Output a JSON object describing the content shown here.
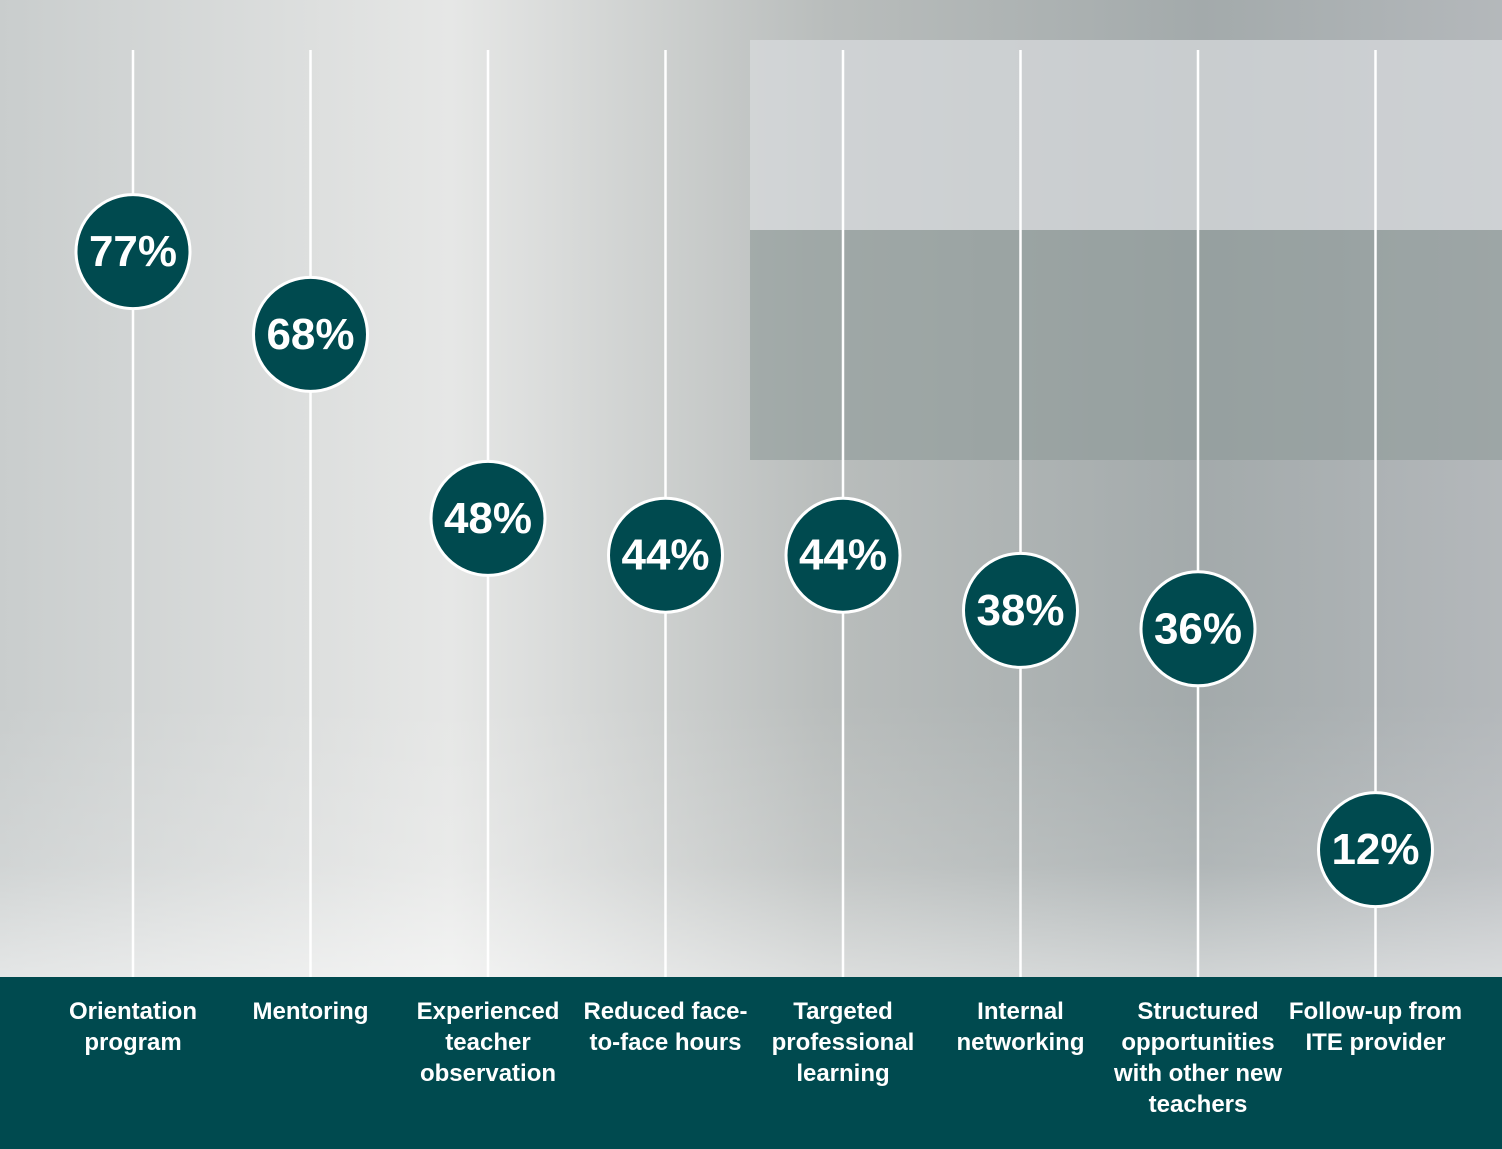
{
  "chart_data": {
    "type": "lollipop",
    "categories": [
      "Orientation program",
      "Mentoring",
      "Experienced teacher observation",
      "Reduced face-to-face hours",
      "Targeted professional learning",
      "Internal networking",
      "Structured opportunities with other new teachers",
      "Follow-up from ITE provider"
    ],
    "values": [
      77,
      68,
      48,
      44,
      44,
      38,
      36,
      12
    ],
    "value_labels": [
      "77%",
      "68%",
      "48%",
      "44%",
      "44%",
      "38%",
      "36%",
      "12%"
    ],
    "color": "#004a4f",
    "ylim": [
      0,
      100
    ]
  }
}
